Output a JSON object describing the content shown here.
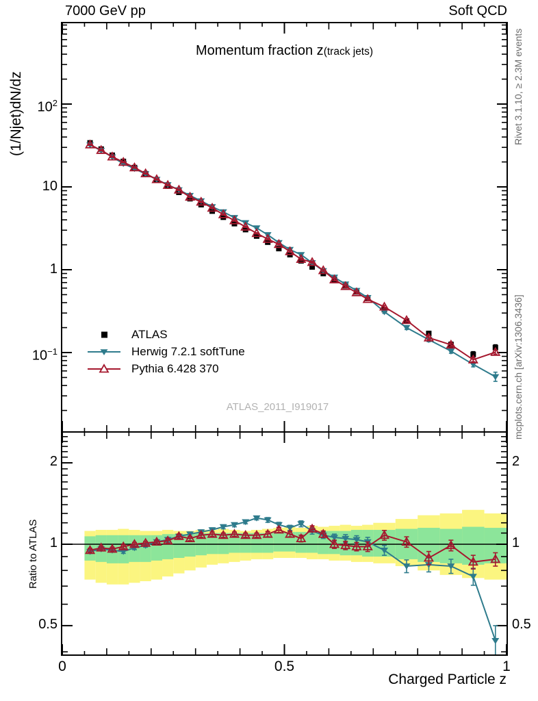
{
  "header": {
    "left": "7000 GeV pp",
    "right": "Soft QCD"
  },
  "title": {
    "main": "Momentum fraction z",
    "paren": "(track jets)"
  },
  "watermark": "ATLAS_2011_I919017",
  "side_notes": {
    "top": "Rivet 3.1.10, ≥ 2.3M events",
    "bottom": "mcplots.cern.ch [arXiv:1306.3436]"
  },
  "colors": {
    "atlas": "#000000",
    "herwig": "#2e7b8c",
    "pythia": "#a5182e",
    "band_yellow": "#fbf580",
    "band_green": "#8ce59a",
    "watermark": "#b2b2b2",
    "note_gray": "#6b6b6b",
    "axis": "#000000"
  },
  "legend": [
    {
      "label": "ATLAS",
      "marker": "filled-square",
      "color": "#000000"
    },
    {
      "label": "Herwig 7.2.1 softTune",
      "marker": "filled-triangle-down",
      "color": "#2e7b8c"
    },
    {
      "label": "Pythia 6.428 370",
      "marker": "open-triangle-up",
      "color": "#a5182e"
    }
  ],
  "chart_data": {
    "type": "line",
    "title": "Momentum fraction z (track jets)",
    "xlabel": "Charged Particle z",
    "xlim": [
      0,
      1
    ],
    "xticks": [
      {
        "v": 0,
        "label": "0"
      },
      {
        "v": 0.5,
        "label": "0.5"
      },
      {
        "v": 1,
        "label": "1"
      }
    ],
    "panels": {
      "spectrum": {
        "ylabel": "(1/Njet)dN/dz",
        "yscale": "log",
        "ylim": [
          0.011,
          960
        ],
        "yticks": [
          {
            "v": 100,
            "base": "10",
            "exp": "2"
          },
          {
            "v": 10,
            "base": "10",
            "exp": ""
          },
          {
            "v": 1,
            "base": "1",
            "exp": ""
          },
          {
            "v": 0.1,
            "base": "10",
            "exp": "−1"
          }
        ]
      },
      "ratio": {
        "ylabel": "Ratio to ATLAS",
        "yscale": "log",
        "ylim": [
          0.39,
          2.6
        ],
        "yticks": [
          {
            "v": 2,
            "label": "2"
          },
          {
            "v": 1,
            "label": "1"
          },
          {
            "v": 0.5,
            "label": "0.5"
          }
        ]
      }
    },
    "bin_edges": [
      0.05,
      0.075,
      0.1,
      0.125,
      0.15,
      0.175,
      0.2,
      0.225,
      0.25,
      0.275,
      0.3,
      0.325,
      0.35,
      0.375,
      0.4,
      0.425,
      0.45,
      0.475,
      0.5,
      0.525,
      0.55,
      0.575,
      0.6,
      0.625,
      0.65,
      0.675,
      0.7,
      0.75,
      0.8,
      0.85,
      0.9,
      0.95,
      1.0
    ],
    "x": [
      0.0625,
      0.0875,
      0.1125,
      0.1375,
      0.1625,
      0.1875,
      0.2125,
      0.2375,
      0.2625,
      0.2875,
      0.3125,
      0.3375,
      0.3625,
      0.3875,
      0.4125,
      0.4375,
      0.4625,
      0.4875,
      0.5125,
      0.5375,
      0.5625,
      0.5875,
      0.6125,
      0.6375,
      0.6625,
      0.6875,
      0.725,
      0.775,
      0.825,
      0.875,
      0.925,
      0.975
    ],
    "series": [
      {
        "name": "ATLAS",
        "values": [
          34,
          28.6,
          24.1,
          20.3,
          17.1,
          14.4,
          12.1,
          10.2,
          8.6,
          7.2,
          6.1,
          5.1,
          4.3,
          3.6,
          3.05,
          2.55,
          2.15,
          1.8,
          1.52,
          1.28,
          1.08,
          0.9,
          0.76,
          0.64,
          0.54,
          0.45,
          0.33,
          0.24,
          0.17,
          0.125,
          0.095,
          0.115
        ],
        "err_frac": [
          0.03,
          0.03,
          0.03,
          0.03,
          0.03,
          0.03,
          0.03,
          0.03,
          0.03,
          0.03,
          0.03,
          0.03,
          0.03,
          0.03,
          0.03,
          0.03,
          0.03,
          0.03,
          0.03,
          0.03,
          0.03,
          0.03,
          0.03,
          0.03,
          0.03,
          0.03,
          0.05,
          0.05,
          0.06,
          0.07,
          0.08,
          0.08
        ]
      },
      {
        "name": "Herwig 7.2.1 softTune",
        "values": [
          32,
          27.5,
          22.9,
          19.1,
          16.6,
          14.3,
          12.3,
          10.6,
          9.2,
          7.85,
          6.77,
          5.76,
          4.99,
          4.25,
          3.69,
          3.19,
          2.64,
          2.12,
          1.75,
          1.52,
          1.21,
          0.97,
          0.81,
          0.67,
          0.56,
          0.46,
          0.31,
          0.2,
          0.143,
          0.104,
          0.072,
          0.051
        ],
        "ratio": [
          0.94,
          0.96,
          0.95,
          0.94,
          0.97,
          0.99,
          1.02,
          1.04,
          1.07,
          1.09,
          1.11,
          1.13,
          1.16,
          1.18,
          1.21,
          1.25,
          1.23,
          1.18,
          1.15,
          1.19,
          1.12,
          1.08,
          1.06,
          1.05,
          1.04,
          1.02,
          0.95,
          0.83,
          0.84,
          0.83,
          0.76,
          0.44
        ],
        "ratio_err": [
          0.015,
          0.015,
          0.015,
          0.015,
          0.015,
          0.015,
          0.015,
          0.02,
          0.02,
          0.02,
          0.02,
          0.02,
          0.02,
          0.02,
          0.02,
          0.02,
          0.025,
          0.025,
          0.025,
          0.03,
          0.03,
          0.03,
          0.03,
          0.035,
          0.035,
          0.04,
          0.04,
          0.045,
          0.05,
          0.05,
          0.055,
          0.06
        ]
      },
      {
        "name": "Pythia 6.428 370",
        "values": [
          32.3,
          27.7,
          23.1,
          19.9,
          17.1,
          14.5,
          12.3,
          10.5,
          9.2,
          7.56,
          6.59,
          5.56,
          4.64,
          3.92,
          3.29,
          2.75,
          2.34,
          2.03,
          1.66,
          1.34,
          1.23,
          0.98,
          0.76,
          0.63,
          0.53,
          0.44,
          0.356,
          0.245,
          0.151,
          0.124,
          0.082,
          0.101
        ],
        "ratio": [
          0.95,
          0.97,
          0.96,
          0.98,
          1.0,
          1.01,
          1.02,
          1.03,
          1.07,
          1.05,
          1.08,
          1.09,
          1.08,
          1.09,
          1.08,
          1.08,
          1.09,
          1.13,
          1.09,
          1.05,
          1.14,
          1.09,
          1.0,
          0.99,
          0.98,
          0.98,
          1.08,
          1.02,
          0.89,
          0.99,
          0.86,
          0.88
        ],
        "ratio_err": [
          0.015,
          0.015,
          0.015,
          0.015,
          0.015,
          0.015,
          0.015,
          0.02,
          0.02,
          0.02,
          0.02,
          0.02,
          0.02,
          0.02,
          0.02,
          0.02,
          0.025,
          0.025,
          0.025,
          0.03,
          0.03,
          0.03,
          0.035,
          0.035,
          0.035,
          0.04,
          0.045,
          0.045,
          0.05,
          0.045,
          0.05,
          0.05
        ]
      }
    ],
    "bands": {
      "yellow_lo": [
        0.74,
        0.72,
        0.71,
        0.71,
        0.72,
        0.73,
        0.74,
        0.76,
        0.78,
        0.8,
        0.82,
        0.84,
        0.85,
        0.86,
        0.87,
        0.88,
        0.88,
        0.89,
        0.89,
        0.89,
        0.88,
        0.88,
        0.87,
        0.87,
        0.86,
        0.86,
        0.85,
        0.83,
        0.8,
        0.77,
        0.75,
        0.74
      ],
      "yellow_hi": [
        1.12,
        1.13,
        1.13,
        1.14,
        1.13,
        1.12,
        1.12,
        1.13,
        1.12,
        1.12,
        1.13,
        1.13,
        1.14,
        1.13,
        1.12,
        1.13,
        1.14,
        1.15,
        1.16,
        1.15,
        1.17,
        1.16,
        1.17,
        1.18,
        1.17,
        1.18,
        1.2,
        1.24,
        1.28,
        1.3,
        1.34,
        1.3
      ],
      "green_lo": [
        0.87,
        0.86,
        0.85,
        0.85,
        0.86,
        0.86,
        0.87,
        0.88,
        0.89,
        0.9,
        0.91,
        0.92,
        0.92,
        0.93,
        0.93,
        0.93,
        0.93,
        0.94,
        0.94,
        0.93,
        0.93,
        0.92,
        0.92,
        0.91,
        0.91,
        0.9,
        0.9,
        0.88,
        0.86,
        0.85,
        0.84,
        0.85
      ],
      "green_hi": [
        1.07,
        1.08,
        1.08,
        1.08,
        1.08,
        1.08,
        1.08,
        1.09,
        1.09,
        1.09,
        1.1,
        1.1,
        1.1,
        1.1,
        1.1,
        1.1,
        1.1,
        1.11,
        1.11,
        1.11,
        1.11,
        1.12,
        1.12,
        1.12,
        1.13,
        1.13,
        1.13,
        1.14,
        1.15,
        1.14,
        1.16,
        1.15
      ]
    }
  }
}
